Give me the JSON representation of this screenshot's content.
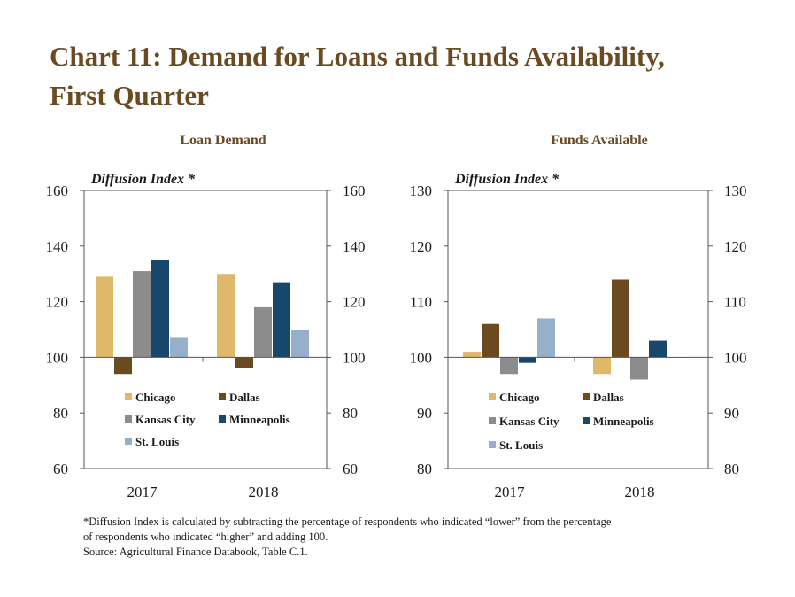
{
  "title_line1": "Chart 11: Demand for Loans and Funds Availability,",
  "title_line2": "First Quarter",
  "footnote": {
    "line1": "*Diffusion Index is calculated by subtracting the percentage of respondents who indicated “lower” from the percentage",
    "line2": "of respondents who indicated “higher” and adding 100.",
    "source": "Source: Agricultural Finance Databook, Table C.1."
  },
  "chart_data": [
    {
      "type": "bar",
      "title": "Loan Demand",
      "ylabel": "Diffusion Index *",
      "categories": [
        "2017",
        "2018"
      ],
      "ylim": [
        60,
        160
      ],
      "yticks": [
        "60",
        "80",
        "100",
        "120",
        "140",
        "160"
      ],
      "baseline": 100,
      "legend": "inside-bottom",
      "series": [
        {
          "name": "Chicago",
          "color": "#e0b86a",
          "values": [
            129,
            130
          ]
        },
        {
          "name": "Dallas",
          "color": "#6b4a22",
          "values": [
            94,
            96
          ]
        },
        {
          "name": "Kansas City",
          "color": "#8c8c8c",
          "values": [
            131,
            118
          ]
        },
        {
          "name": "Minneapolis",
          "color": "#17476b",
          "values": [
            135,
            127
          ]
        },
        {
          "name": "St. Louis",
          "color": "#96b0cb",
          "values": [
            107,
            110
          ]
        }
      ]
    },
    {
      "type": "bar",
      "title": "Funds Available",
      "ylabel": "Diffusion Index *",
      "categories": [
        "2017",
        "2018"
      ],
      "ylim": [
        80,
        130
      ],
      "yticks": [
        "80",
        "90",
        "100",
        "110",
        "120",
        "130"
      ],
      "baseline": 100,
      "legend": "inside-bottom",
      "series": [
        {
          "name": "Chicago",
          "color": "#e0b86a",
          "values": [
            101,
            97
          ]
        },
        {
          "name": "Dallas",
          "color": "#6b4a22",
          "values": [
            106,
            114
          ]
        },
        {
          "name": "Kansas City",
          "color": "#8c8c8c",
          "values": [
            97,
            96
          ]
        },
        {
          "name": "Minneapolis",
          "color": "#17476b",
          "values": [
            99,
            103
          ]
        },
        {
          "name": "St. Louis",
          "color": "#96b0cb",
          "values": [
            107,
            100
          ]
        }
      ]
    }
  ]
}
